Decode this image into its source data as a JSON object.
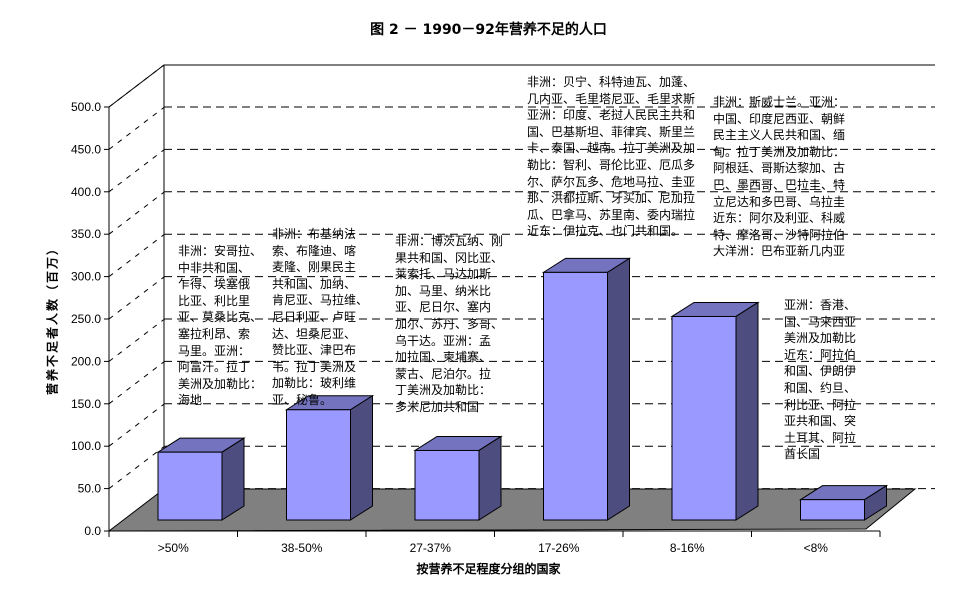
{
  "chart_data": {
    "type": "bar",
    "title": "图 2 － 1990－92年营养不足的人口",
    "xlabel": "按营养不足程度分组的国家",
    "ylabel": "营养不足者人数（百万）",
    "categories": [
      ">50%",
      "38-50%",
      "27-37%",
      "17-26%",
      "8-16%",
      "<8%"
    ],
    "values": [
      80,
      130,
      82,
      292,
      240,
      24
    ],
    "ylim": [
      0,
      500
    ],
    "yticks": [
      "0.0",
      "50.0",
      "100.0",
      "150.0",
      "200.0",
      "250.0",
      "300.0",
      "350.0",
      "400.0",
      "450.0",
      "500.0"
    ],
    "grid": true,
    "three_d": true,
    "colors": {
      "bar_front": "#9999ff",
      "bar_top": "#7373bf",
      "bar_side": "#4d4d80",
      "floor": "#808080"
    },
    "annotations": [
      [
        "非洲：安哥拉、",
        "中非共和国、",
        "乍得、埃塞俄",
        "比亚、利比里",
        "亚、莫桑比克、",
        "塞拉利昂、索",
        "马里。亚洲：",
        "阿富汗。拉丁",
        "美洲及加勒比：",
        "海地"
      ],
      [
        "非洲：布基纳法",
        "索、布隆迪、喀",
        "麦隆、刚果民主",
        "共和国、加纳、",
        "肯尼亚、马拉维、",
        "尼日利亚、卢旺",
        "达、坦桑尼亚、",
        "赞比亚、津巴布",
        "韦。拉丁美洲及",
        "加勒比：玻利维",
        "亚、秘鲁。"
      ],
      [
        "非洲：博茨瓦纳、刚",
        "果共和国、冈比亚、",
        "莱索托、马达加斯",
        "加、马里、纳米比",
        "亚、尼日尔、塞内",
        "加尔、苏丹、多哥、",
        "乌干达。亚洲：孟",
        "加拉国、柬埔寨、",
        "蒙古、尼泊尔。拉",
        "丁美洲及加勒比：",
        "多米尼加共和国"
      ],
      [
        " 非洲：贝宁、科特迪瓦、加蓬、",
        "几内亚、毛里塔尼亚、毛里求斯",
        "亚洲：印度、老挝人民民主共和",
        "国、巴基斯坦、菲律宾、斯里兰",
        "卡、泰国、越南。拉丁美洲及加",
        "勒比：智利、哥伦比亚、厄瓜多",
        "尔、萨尔瓦多、危地马拉、圭亚",
        "那、洪都拉斯、牙买加、尼加拉",
        "瓜、巴拿马、苏里南、委内瑞拉",
        "近东：伊拉克、也门共和国。"
      ],
      [
        "非洲：斯威士兰。亚洲：",
        "中国、印度尼西亚、朝鲜",
        "民主主义人民共和国、缅",
        "甸。拉丁美洲及加勒比：",
        "阿根廷、哥斯达黎加、古",
        "巴、墨西哥、巴拉圭、特",
        "立尼达和多巴哥、乌拉圭",
        "近东：阿尔及利亚、科威",
        "特、摩洛哥、沙特阿拉伯",
        "大洋洲：巴布亚新几内亚"
      ],
      [
        "亚洲：香港、",
        "国、马来西亚",
        "美洲及加勒比",
        "近东：阿拉伯",
        "和国、伊朗伊",
        "和国、约旦、",
        "利比亚、阿拉",
        "亚共和国、突",
        "土耳其、阿拉",
        "酋长国"
      ]
    ]
  }
}
